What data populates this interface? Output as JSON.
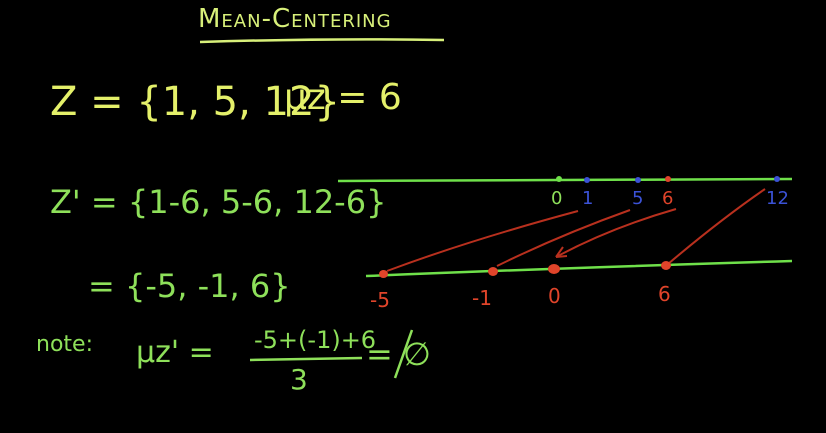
{
  "title": "Mean-Centering",
  "set_z": {
    "expr": "Z = {1, 5, 12}",
    "mean": "μz = 6"
  },
  "set_z_prime": {
    "expr": "Z' = {1-6, 5-6, 12-6}",
    "result": "= {-5, -1, 6}"
  },
  "note": {
    "label": "note:",
    "lhs": "μz' =",
    "numerator": "-5+(-1)+6",
    "denominator": "3",
    "rhs": "= ∅"
  },
  "top_line": {
    "points": [
      {
        "label": "0",
        "value": 0
      },
      {
        "label": "1",
        "value": 1
      },
      {
        "label": "5",
        "value": 5
      },
      {
        "label": "6",
        "value": 6
      },
      {
        "label": "12",
        "value": 12
      }
    ]
  },
  "bottom_line": {
    "points": [
      {
        "label": "-5",
        "value": -5
      },
      {
        "label": "-1",
        "value": -1
      },
      {
        "label": "0",
        "value": 0
      },
      {
        "label": "6",
        "value": 6
      }
    ]
  },
  "colors": {
    "title": "#d8f07a",
    "yellow": "#e4f06a",
    "green": "#8ee05a",
    "line": "#6fe04a",
    "blue": "#3b52d6",
    "red": "#e0442a",
    "dark_red": "#b8301e"
  }
}
